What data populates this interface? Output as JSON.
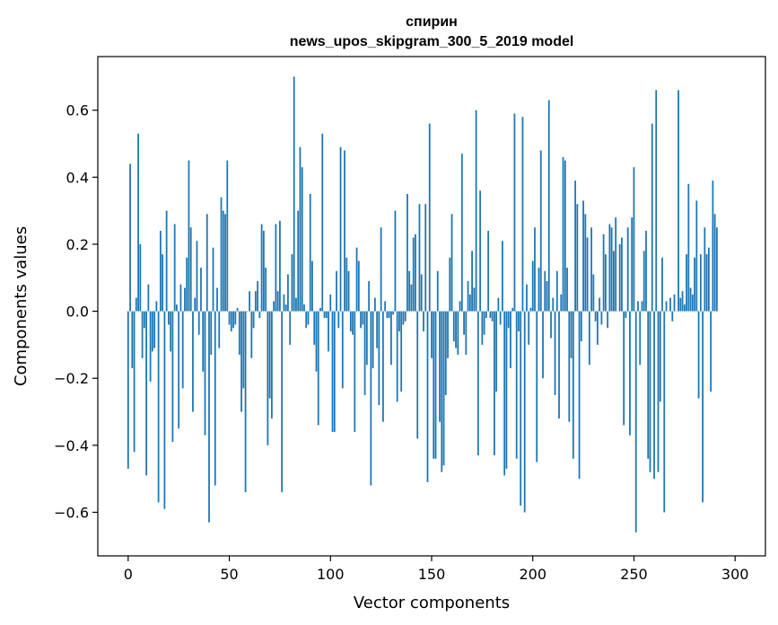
{
  "chart_data": {
    "type": "bar",
    "title": "спирин",
    "subtitle": "news_upos_skipgram_300_5_2019 model",
    "xlabel": "Vector components",
    "ylabel": "Components values",
    "xlim": [
      -15,
      315
    ],
    "ylim": [
      -0.73,
      0.76
    ],
    "xticks": [
      0,
      50,
      100,
      150,
      200,
      250,
      300
    ],
    "xtick_labels": [
      "0",
      "50",
      "100",
      "150",
      "200",
      "250",
      "300"
    ],
    "yticks": [
      -0.6,
      -0.4,
      -0.2,
      0.0,
      0.2,
      0.4,
      0.6
    ],
    "ytick_labels": [
      "−0.6",
      "−0.4",
      "−0.2",
      "0.0",
      "0.2",
      "0.4",
      "0.6"
    ],
    "bar_color": "#1f77b4",
    "bar_width": 0.8,
    "x": "0..299",
    "values": [
      -0.47,
      0.44,
      -0.17,
      -0.42,
      0.04,
      0.53,
      0.2,
      -0.14,
      -0.05,
      -0.49,
      0.08,
      -0.21,
      -0.12,
      -0.11,
      0.03,
      -0.57,
      0.24,
      0.17,
      -0.59,
      0.3,
      -0.04,
      -0.12,
      -0.39,
      0.26,
      0.02,
      -0.35,
      0.08,
      -0.23,
      0.07,
      0.16,
      0.45,
      0.25,
      -0.3,
      0.04,
      0.21,
      -0.07,
      0.13,
      -0.18,
      -0.37,
      0.29,
      -0.63,
      -0.13,
      0.19,
      -0.52,
      0.07,
      -0.11,
      0.34,
      0.3,
      0.29,
      0.45,
      -0.04,
      -0.06,
      -0.05,
      -0.04,
      0.01,
      -0.13,
      -0.3,
      -0.23,
      -0.54,
      0.0,
      0.06,
      -0.14,
      -0.05,
      0.06,
      0.09,
      -0.02,
      0.26,
      0.24,
      0.13,
      -0.4,
      -0.26,
      -0.32,
      0.03,
      0.26,
      0.06,
      0.27,
      -0.54,
      0.05,
      0.02,
      0.11,
      -0.1,
      0.17,
      0.7,
      0.04,
      0.3,
      0.49,
      0.43,
      0.02,
      -0.05,
      -0.04,
      0.35,
      0.15,
      -0.1,
      -0.18,
      -0.34,
      0.01,
      0.53,
      -0.02,
      -0.02,
      -0.12,
      0.05,
      -0.36,
      -0.36,
      0.12,
      -0.05,
      0.49,
      -0.23,
      0.48,
      0.16,
      0.12,
      -0.06,
      -0.07,
      -0.36,
      0.19,
      0.15,
      -0.05,
      -0.04,
      -0.25,
      -0.16,
      0.09,
      -0.52,
      -0.17,
      0.04,
      -0.11,
      -0.28,
      0.25,
      -0.33,
      0.03,
      -0.02,
      -0.02,
      -0.16,
      -0.01,
      0.3,
      -0.27,
      -0.06,
      -0.24,
      -0.04,
      -0.03,
      0.35,
      0.12,
      0.08,
      0.22,
      0.23,
      -0.38,
      0.32,
      0.11,
      -0.06,
      0.32,
      -0.51,
      0.56,
      -0.14,
      -0.44,
      -0.44,
      0.12,
      -0.33,
      -0.48,
      -0.46,
      -0.25,
      -0.14,
      0.16,
      0.29,
      -0.09,
      -0.11,
      -0.13,
      0.03,
      0.47,
      -0.07,
      -0.13,
      0.09,
      0.05,
      0.18,
      0.07,
      0.6,
      -0.43,
      0.36,
      -0.1,
      -0.07,
      -0.02,
      0.24,
      -0.02,
      -0.03,
      -0.43,
      -0.24,
      0.04,
      -0.04,
      0.21,
      -0.49,
      -0.47,
      -0.05,
      -0.17,
      0.01,
      0.59,
      -0.44,
      -0.06,
      -0.58,
      0.58,
      -0.6,
      0.08,
      -0.1,
      0.01,
      0.15,
      0.25,
      -0.45,
      0.13,
      0.48,
      -0.2,
      0.12,
      0.09,
      0.63,
      -0.08,
      0.04,
      -0.25,
      0.12,
      -0.32,
      0.05,
      0.46,
      0.45,
      0.13,
      -0.33,
      -0.14,
      -0.44,
      0.39,
      0.32,
      -0.5,
      -0.09,
      0.33,
      0.29,
      0.22,
      -0.16,
      0.25,
      0.11,
      -0.03,
      -0.1,
      0.04,
      -0.04,
      0.23,
      0.17,
      -0.05,
      0.26,
      0.25,
      0.18,
      0.28,
      0.0,
      0.2,
      0.22,
      -0.34,
      -0.02,
      0.25,
      -0.37,
      0.28,
      0.43,
      -0.66,
      0.03,
      -0.16,
      0.03,
      0.18,
      0.24,
      -0.44,
      -0.48,
      0.56,
      -0.5,
      0.66,
      -0.48,
      -0.27,
      0.16,
      -0.6,
      0.03,
      0.0,
      0.04,
      -0.03,
      0.05,
      0.0,
      0.66,
      0.04,
      0.06,
      0.02,
      0.17,
      0.38,
      0.07,
      0.05,
      0.16,
      0.33,
      -0.26,
      0.17,
      -0.57,
      0.25,
      0.17,
      0.19,
      -0.24,
      0.39,
      0.29,
      0.25
    ]
  }
}
